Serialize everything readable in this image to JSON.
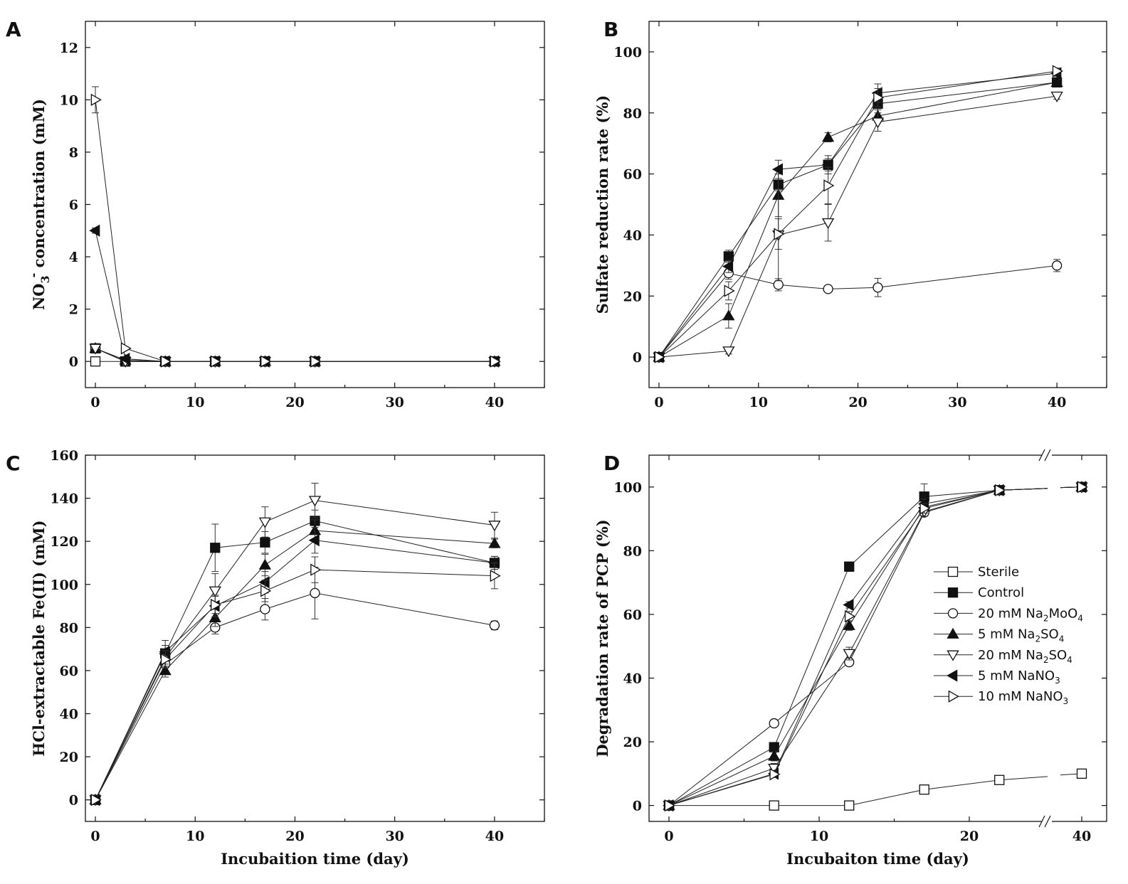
{
  "chart_data": [
    {
      "panel": "A",
      "type": "line",
      "xlabel": "",
      "ylabel_main": "NO",
      "ylabel_sub": "3",
      "ylabel_sup": "-",
      "ylabel_rest": " concentration (mM)",
      "xlim": [
        -1,
        45
      ],
      "ylim": [
        -1,
        13
      ],
      "xticks": [
        0,
        10,
        20,
        30,
        40
      ],
      "yticks": [
        0,
        2,
        4,
        6,
        8,
        10,
        12
      ],
      "series": [
        {
          "name": "Sterile",
          "marker": "square",
          "fill": "none",
          "x": [
            0,
            3,
            7,
            12,
            17,
            22,
            40
          ],
          "y": [
            0,
            0,
            0,
            0,
            0,
            0,
            0
          ],
          "err": [
            0,
            0,
            0,
            0,
            0,
            0,
            0
          ]
        },
        {
          "name": "Control",
          "marker": "square",
          "fill": "solid",
          "x": [
            0,
            3,
            7,
            12,
            17,
            22,
            40
          ],
          "y": [
            0.5,
            0,
            0,
            0,
            0,
            0,
            0
          ],
          "err": [
            0,
            0,
            0,
            0,
            0,
            0,
            0
          ]
        },
        {
          "name": "20 mM Na2MoO4",
          "marker": "circle",
          "fill": "none",
          "x": [
            0,
            3,
            7,
            12,
            17,
            22,
            40
          ],
          "y": [
            0.5,
            0,
            0,
            0,
            0,
            0,
            0
          ],
          "err": [
            0,
            0,
            0,
            0,
            0,
            0,
            0
          ]
        },
        {
          "name": "5 mM Na2SO4",
          "marker": "triangle-up",
          "fill": "solid",
          "x": [
            0,
            3,
            7,
            12,
            17,
            22,
            40
          ],
          "y": [
            0.5,
            0.05,
            0,
            0,
            0,
            0,
            0
          ],
          "err": [
            0,
            0,
            0,
            0,
            0,
            0,
            0
          ]
        },
        {
          "name": "20 mM Na2SO4",
          "marker": "triangle-down",
          "fill": "none",
          "x": [
            0,
            3,
            7,
            12,
            17,
            22,
            40
          ],
          "y": [
            0.5,
            0,
            0,
            0,
            0,
            0,
            0
          ],
          "err": [
            0,
            0,
            0,
            0,
            0,
            0,
            0
          ]
        },
        {
          "name": "5 mM NaNO3",
          "marker": "triangle-left",
          "fill": "solid",
          "x": [
            0,
            3,
            7,
            12,
            17,
            22,
            40
          ],
          "y": [
            5.0,
            0.1,
            0,
            0,
            0,
            0,
            0
          ],
          "err": [
            0.1,
            0,
            0,
            0,
            0,
            0,
            0
          ]
        },
        {
          "name": "10 mM NaNO3",
          "marker": "triangle-right",
          "fill": "none",
          "x": [
            0,
            3,
            7,
            12,
            17,
            22,
            40
          ],
          "y": [
            10.0,
            0.5,
            0,
            0,
            0,
            0,
            0
          ],
          "err": [
            0.5,
            0,
            0,
            0,
            0,
            0,
            0
          ]
        }
      ]
    },
    {
      "panel": "B",
      "type": "line",
      "xlabel": "",
      "ylabel": "Sulfate reduction rate (%)",
      "xlim": [
        -1,
        45
      ],
      "ylim": [
        -10,
        110
      ],
      "xticks": [
        0,
        10,
        20,
        30,
        40
      ],
      "yticks": [
        0,
        20,
        40,
        60,
        80,
        100
      ],
      "series": [
        {
          "name": "Control",
          "marker": "square",
          "fill": "solid",
          "x": [
            0,
            7,
            12,
            17,
            22,
            40
          ],
          "y": [
            0,
            33,
            56.5,
            63,
            83,
            90
          ],
          "err": [
            0,
            2,
            2,
            3,
            2,
            1
          ]
        },
        {
          "name": "20 mM Na2MoO4",
          "marker": "circle",
          "fill": "none",
          "x": [
            0,
            7,
            12,
            17,
            22,
            40
          ],
          "y": [
            0,
            27.5,
            23.7,
            22.3,
            22.8,
            30
          ],
          "err": [
            0,
            2,
            2,
            1,
            3,
            2
          ]
        },
        {
          "name": "5 mM Na2SO4",
          "marker": "triangle-up",
          "fill": "solid",
          "x": [
            0,
            7,
            12,
            17,
            22,
            40
          ],
          "y": [
            0,
            13.5,
            53,
            72,
            79,
            90
          ],
          "err": [
            0,
            4,
            7,
            1.5,
            2,
            1
          ]
        },
        {
          "name": "20 mM Na2SO4",
          "marker": "triangle-down",
          "fill": "none",
          "x": [
            0,
            7,
            12,
            17,
            22,
            40
          ],
          "y": [
            0,
            2,
            40,
            44,
            77,
            85.5
          ],
          "err": [
            0,
            1,
            15,
            6,
            3,
            1
          ]
        },
        {
          "name": "5 mM NaNO3",
          "marker": "triangle-left",
          "fill": "solid",
          "x": [
            0,
            7,
            12,
            17,
            22,
            40
          ],
          "y": [
            0,
            29.7,
            61.5,
            63,
            86.5,
            93
          ],
          "err": [
            0,
            2,
            3,
            2,
            3,
            1
          ]
        },
        {
          "name": "10 mM NaNO3",
          "marker": "triangle-right",
          "fill": "none",
          "x": [
            0,
            7,
            12,
            17,
            22,
            40
          ],
          "y": [
            0,
            21.7,
            40.3,
            56.2,
            85,
            93.7
          ],
          "err": [
            0,
            3,
            5,
            6,
            3,
            1
          ]
        }
      ]
    },
    {
      "panel": "C",
      "type": "line",
      "xlabel": "Incubaition time (day)",
      "ylabel": "HCl-extractable Fe(II) (mM)",
      "xlim": [
        -1,
        45
      ],
      "ylim": [
        -10,
        160
      ],
      "xticks": [
        0,
        10,
        20,
        30,
        40
      ],
      "yticks": [
        0,
        20,
        40,
        60,
        80,
        100,
        120,
        140,
        160
      ],
      "series": [
        {
          "name": "Control",
          "marker": "square",
          "fill": "solid",
          "x": [
            0,
            7,
            12,
            17,
            22,
            40
          ],
          "y": [
            0,
            68,
            117,
            119.5,
            129.5,
            110
          ],
          "err": [
            0,
            6,
            11,
            5,
            5,
            3
          ]
        },
        {
          "name": "20 mM Na2MoO4",
          "marker": "circle",
          "fill": "none",
          "x": [
            0,
            7,
            12,
            17,
            22,
            40
          ],
          "y": [
            0,
            63,
            80,
            88.5,
            96,
            81
          ],
          "err": [
            0,
            4,
            3,
            5,
            12,
            2
          ]
        },
        {
          "name": "5 mM Na2SO4",
          "marker": "triangle-up",
          "fill": "solid",
          "x": [
            0,
            7,
            12,
            17,
            22,
            40
          ],
          "y": [
            0,
            60,
            84.5,
            109,
            125,
            119
          ],
          "err": [
            0,
            3,
            4,
            5,
            5,
            2
          ]
        },
        {
          "name": "20 mM Na2SO4",
          "marker": "triangle-down",
          "fill": "none",
          "x": [
            0,
            7,
            12,
            17,
            22,
            40
          ],
          "y": [
            0,
            66,
            97,
            129,
            139,
            127.5
          ],
          "err": [
            0,
            4,
            8,
            7,
            8,
            6
          ]
        },
        {
          "name": "5 mM NaNO3",
          "marker": "triangle-left",
          "fill": "solid",
          "x": [
            0,
            7,
            12,
            17,
            22,
            40
          ],
          "y": [
            0,
            68.7,
            90,
            101,
            120.5,
            110
          ],
          "err": [
            0,
            3,
            5,
            5,
            6,
            3
          ]
        },
        {
          "name": "10 mM NaNO3",
          "marker": "triangle-right",
          "fill": "none",
          "x": [
            0,
            7,
            12,
            17,
            22,
            40
          ],
          "y": [
            0,
            65.2,
            90.5,
            97,
            106.8,
            104
          ],
          "err": [
            0,
            4,
            4,
            5,
            6,
            6
          ]
        }
      ]
    },
    {
      "panel": "D",
      "type": "line",
      "xlabel": "Incubaiton time (day)",
      "ylabel": "Degradation rate of PCP (%)",
      "xlim": [
        -1,
        42
      ],
      "ylim": [
        -5,
        110
      ],
      "xticks": [
        0,
        10,
        20,
        40
      ],
      "yticks": [
        0,
        20,
        40,
        60,
        80,
        100
      ],
      "axis_break": "//",
      "legend_position": "right",
      "legend": [
        {
          "name": "Sterile",
          "label": "Sterile",
          "sub": "",
          "rest": "",
          "marker": "square",
          "fill": "none"
        },
        {
          "name": "Control",
          "label": "Control",
          "sub": "",
          "rest": "",
          "marker": "square",
          "fill": "solid"
        },
        {
          "name": "20 mM Na2MoO4",
          "label": "20 mM Na",
          "sub": "2",
          "rest": "MoO",
          "sub2": "4",
          "marker": "circle",
          "fill": "none"
        },
        {
          "name": "5 mM Na2SO4",
          "label": "5 mM Na",
          "sub": "2",
          "rest": "SO",
          "sub2": "4",
          "marker": "triangle-up",
          "fill": "solid"
        },
        {
          "name": "20 mM Na2SO4",
          "label": "20 mM Na",
          "sub": "2",
          "rest": "SO",
          "sub2": "4",
          "marker": "triangle-down",
          "fill": "none"
        },
        {
          "name": "5 mM NaNO3",
          "label": "5 mM NaNO",
          "sub": "3",
          "rest": "",
          "sub2": "",
          "marker": "triangle-left",
          "fill": "solid"
        },
        {
          "name": "10 mM NaNO3",
          "label": "10 mM NaNO",
          "sub": "3",
          "rest": "",
          "sub2": "",
          "marker": "triangle-right",
          "fill": "none"
        }
      ],
      "series": [
        {
          "name": "Sterile",
          "marker": "square",
          "fill": "none",
          "x": [
            0,
            7,
            12,
            17,
            22,
            40
          ],
          "y": [
            0,
            0,
            0,
            5,
            8,
            10
          ],
          "err": [
            0,
            0,
            0,
            0.5,
            0.5,
            0.5
          ]
        },
        {
          "name": "Control",
          "marker": "square",
          "fill": "solid",
          "x": [
            0,
            7,
            12,
            17,
            22,
            40
          ],
          "y": [
            0,
            18.3,
            75,
            97,
            99,
            100
          ],
          "err": [
            0,
            1.5,
            1.5,
            4,
            0.5,
            0.3
          ]
        },
        {
          "name": "20 mM Na2MoO4",
          "marker": "circle",
          "fill": "none",
          "x": [
            0,
            7,
            12,
            17,
            22,
            40
          ],
          "y": [
            0,
            25.8,
            45,
            92,
            99,
            100
          ],
          "err": [
            0,
            1,
            1,
            1,
            0.5,
            0.3
          ]
        },
        {
          "name": "5 mM Na2SO4",
          "marker": "triangle-up",
          "fill": "solid",
          "x": [
            0,
            7,
            12,
            17,
            22,
            40
          ],
          "y": [
            0,
            15.5,
            56.5,
            93.7,
            99,
            100
          ],
          "err": [
            0,
            1.5,
            1.5,
            1.5,
            0.5,
            0.3
          ]
        },
        {
          "name": "20 mM Na2SO4",
          "marker": "triangle-down",
          "fill": "none",
          "x": [
            0,
            7,
            12,
            17,
            22,
            40
          ],
          "y": [
            0,
            11.7,
            47.7,
            92.3,
            99,
            100
          ],
          "err": [
            0,
            1.5,
            2,
            1.5,
            0.5,
            0.3
          ]
        },
        {
          "name": "5 mM NaNO3",
          "marker": "triangle-left",
          "fill": "solid",
          "x": [
            0,
            7,
            12,
            17,
            22,
            40
          ],
          "y": [
            0,
            10,
            63,
            94.7,
            99,
            100
          ],
          "err": [
            0,
            1,
            1,
            1.5,
            0.5,
            0.3
          ]
        },
        {
          "name": "10 mM NaNO3",
          "marker": "triangle-right",
          "fill": "none",
          "x": [
            0,
            7,
            12,
            17,
            22,
            40
          ],
          "y": [
            0,
            9.8,
            59.4,
            93.3,
            99,
            100
          ],
          "err": [
            0,
            1,
            1.5,
            1.5,
            0.5,
            0.3
          ]
        }
      ]
    }
  ]
}
